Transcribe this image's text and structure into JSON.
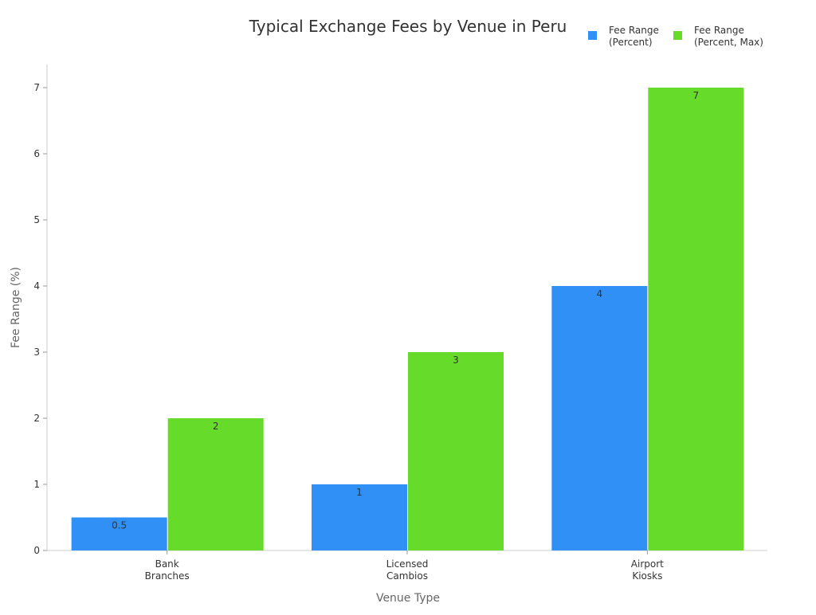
{
  "chart_data": {
    "type": "bar",
    "title": "Typical Exchange Fees by Venue in Peru",
    "xlabel": "Venue Type",
    "ylabel": "Fee Range (%)",
    "categories": [
      [
        "Bank",
        "Branches"
      ],
      [
        "Licensed",
        "Cambios"
      ],
      [
        "Airport",
        "Kiosks"
      ]
    ],
    "series": [
      {
        "name": [
          "Fee Range",
          "(Percent)"
        ],
        "values": [
          0.5,
          1,
          4
        ],
        "labels": [
          "0.5",
          "1",
          "4"
        ],
        "color": "#3090f5"
      },
      {
        "name": [
          "Fee Range",
          "(Percent, Max)"
        ],
        "values": [
          2,
          3,
          7
        ],
        "labels": [
          "2",
          "3",
          "7"
        ],
        "color": "#66db2a"
      }
    ],
    "ylim": [
      0,
      7.35
    ],
    "yticks": [
      "0",
      "1",
      "2",
      "3",
      "4",
      "5",
      "6",
      "7"
    ],
    "grid": false,
    "legend": "top-right"
  }
}
